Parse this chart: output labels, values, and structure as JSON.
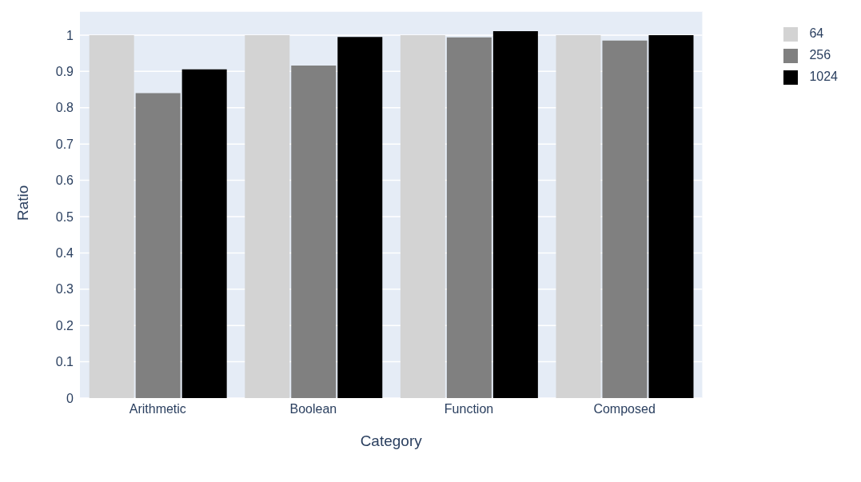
{
  "chart_data": {
    "type": "bar",
    "xlabel": "Category",
    "ylabel": "Ratio",
    "categories": [
      "Arithmetic",
      "Boolean",
      "Function",
      "Composed"
    ],
    "series": [
      {
        "name": "64",
        "color": "#d3d3d3",
        "values": [
          1,
          1,
          1,
          1
        ]
      },
      {
        "name": "256",
        "color": "#808080",
        "values": [
          0.84,
          0.916,
          0.994,
          0.985
        ]
      },
      {
        "name": "1024",
        "color": "#000000",
        "values": [
          0.906,
          0.995,
          1.011,
          1
        ]
      }
    ],
    "ylim": [
      0,
      1.066
    ],
    "yticks": [
      0,
      0.1,
      0.2,
      0.3,
      0.4,
      0.5,
      0.6,
      0.7,
      0.8,
      0.9,
      1
    ],
    "grid": "y",
    "legend": "top right"
  }
}
